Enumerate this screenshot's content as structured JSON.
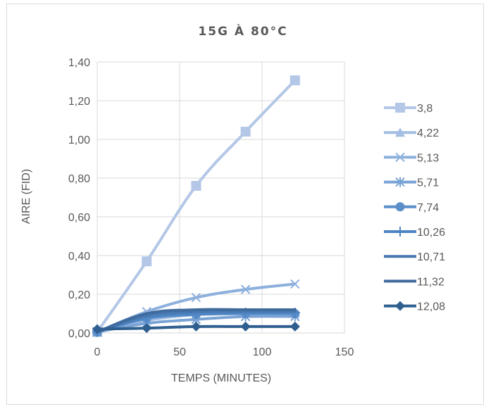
{
  "chart_data": {
    "type": "line",
    "title": "15G À 80°C",
    "xlabel": "TEMPS (MINUTES)",
    "ylabel": "AIRE (FID)",
    "xlim": [
      0,
      150
    ],
    "ylim": [
      0,
      1.4
    ],
    "x_ticks": [
      "0",
      "50",
      "100",
      "150"
    ],
    "y_ticks": [
      "0,00",
      "0,20",
      "0,40",
      "0,60",
      "0,80",
      "1,00",
      "1,20",
      "1,40"
    ],
    "grid": true,
    "legend_position": "right",
    "x": [
      0,
      30,
      60,
      90,
      120
    ],
    "series": [
      {
        "name": "3,8",
        "values": [
          0.005,
          0.37,
          0.76,
          1.04,
          1.305
        ],
        "color": "#b4c7e7",
        "marker": "square"
      },
      {
        "name": "4,22",
        "values": [
          0.005,
          0.065,
          0.095,
          0.1,
          0.1
        ],
        "color": "#a3bde3",
        "marker": "triangle"
      },
      {
        "name": "5,13",
        "values": [
          0.005,
          0.11,
          0.183,
          0.225,
          0.253
        ],
        "color": "#8eb0dd",
        "marker": "x"
      },
      {
        "name": "5,71",
        "values": [
          0.005,
          0.05,
          0.07,
          0.085,
          0.085
        ],
        "color": "#7aa3d5",
        "marker": "asterisk"
      },
      {
        "name": "7,74",
        "values": [
          0.005,
          0.075,
          0.095,
          0.1,
          0.1
        ],
        "color": "#5b8fc9",
        "marker": "circle"
      },
      {
        "name": "10,26",
        "values": [
          0.005,
          0.08,
          0.1,
          0.105,
          0.105
        ],
        "color": "#4d84c3",
        "marker": "plus"
      },
      {
        "name": "10,71",
        "values": [
          0.005,
          0.09,
          0.11,
          0.112,
          0.112
        ],
        "color": "#4878b0",
        "marker": "none"
      },
      {
        "name": "11,32",
        "values": [
          0.005,
          0.1,
          0.12,
          0.12,
          0.12
        ],
        "color": "#3f6b9e",
        "marker": "none"
      },
      {
        "name": "12,08",
        "values": [
          0.02,
          0.025,
          0.033,
          0.033,
          0.033
        ],
        "color": "#2f5f8f",
        "marker": "diamond"
      }
    ]
  }
}
